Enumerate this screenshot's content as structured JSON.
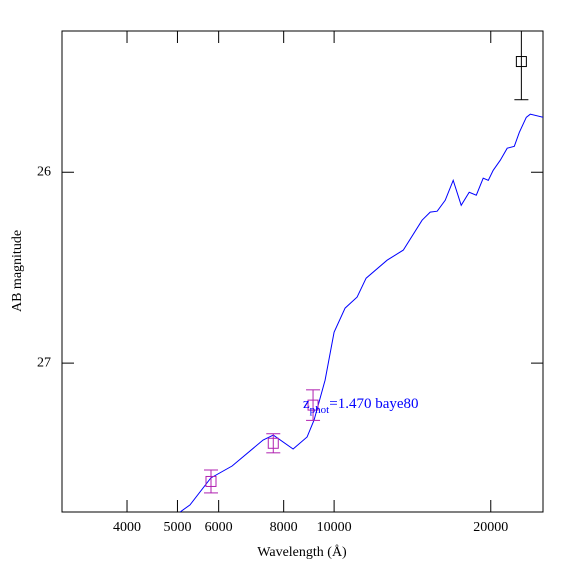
{
  "chart_data": {
    "type": "line",
    "xlabel": "Wavelength (Å)",
    "ylabel": "AB magnitude",
    "xlim": [
      3000,
      25200
    ],
    "ylim": [
      25.26,
      27.78
    ],
    "x_log": true,
    "y_inverted": true,
    "xticks": [
      4000,
      5000,
      6000,
      8000,
      10000,
      20000
    ],
    "yticks": [
      26,
      27
    ],
    "model": {
      "color": "#0000ff",
      "x": [
        5058,
        5285,
        5796,
        6368,
        7304,
        7640,
        8340,
        8874,
        9153,
        9609,
        10000,
        10500,
        11070,
        11520,
        12640,
        13580,
        14760,
        15300,
        15780,
        16350,
        16940,
        17550,
        18180,
        18760,
        19340,
        19780,
        20220,
        20860,
        21510,
        22190,
        22690,
        23400,
        23820,
        25220
      ],
      "values": [
        27.78,
        27.743,
        27.602,
        27.539,
        27.403,
        27.377,
        27.45,
        27.387,
        27.298,
        27.089,
        26.838,
        26.712,
        26.654,
        26.555,
        26.461,
        26.408,
        26.251,
        26.209,
        26.204,
        26.147,
        26.042,
        26.173,
        26.105,
        26.12,
        26.031,
        26.042,
        25.99,
        25.937,
        25.874,
        25.864,
        25.791,
        25.712,
        25.696,
        25.712
      ]
    },
    "photometry": {
      "x": [
        5800,
        7640,
        9110,
        22900
      ],
      "values": [
        27.62,
        27.42,
        27.22,
        25.42
      ],
      "errors": [
        0.06,
        0.05,
        0.08,
        0.2
      ],
      "colors": [
        "#b020b0",
        "#b020b0",
        "#b020b0",
        "#000000"
      ]
    },
    "annotation": {
      "symbol": "z",
      "subscript": "phot",
      "text": "=1.470 baye80",
      "color": "#0000ff"
    }
  }
}
